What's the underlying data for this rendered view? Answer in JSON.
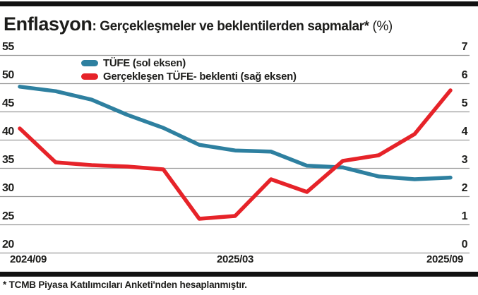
{
  "title": {
    "main": "Enflasyon",
    "separator": ": ",
    "subtitle": "Gerçekleşmeler ve beklentilerden sapmalar*",
    "unit": " (%)"
  },
  "legend": [
    {
      "label": "TÜFE (sol eksen)",
      "color": "#2e80a0"
    },
    {
      "label": "Gerçekleşen TÜFE- beklenti (sağ eksen)",
      "color": "#e62329"
    }
  ],
  "axes": {
    "left": {
      "ticks": [
        55,
        50,
        45,
        40,
        35,
        30,
        25,
        20
      ],
      "range": [
        20,
        55
      ]
    },
    "right": {
      "ticks": [
        7,
        6,
        5,
        4,
        3,
        2,
        1,
        0
      ],
      "range": [
        0,
        7
      ]
    },
    "x": {
      "labels": [
        "2024/09",
        "2025/03",
        "2025/09"
      ]
    }
  },
  "footnote": "* TCMB Piyasa Katılımcıları Anketi'nden hesaplanmıştır.",
  "colors": {
    "teal": "#2e80a0",
    "red": "#e62329",
    "grid": "#999999",
    "rule": "#111111",
    "text": "#1d1d1b"
  },
  "chart_data": {
    "type": "line",
    "title": "Enflasyon: Gerçekleşmeler ve beklentilerden sapmalar* (%)",
    "x": [
      "2024/09",
      "2024/10",
      "2024/11",
      "2024/12",
      "2025/01",
      "2025/02",
      "2025/03",
      "2025/04",
      "2025/05",
      "2025/06",
      "2025/07",
      "2025/08",
      "2025/09"
    ],
    "series": [
      {
        "name": "TÜFE (sol eksen)",
        "axis": "left",
        "color": "#2e80a0",
        "values": [
          49.4,
          48.6,
          47.1,
          44.4,
          42.1,
          39.1,
          38.1,
          37.9,
          35.4,
          35.1,
          33.5,
          33.0,
          33.3
        ]
      },
      {
        "name": "Gerçekleşen TÜFE- beklenti (sağ eksen)",
        "axis": "right",
        "color": "#e62329",
        "values": [
          4.4,
          3.2,
          3.1,
          3.05,
          2.95,
          1.2,
          1.3,
          2.6,
          2.15,
          3.25,
          3.45,
          4.2,
          5.75
        ]
      }
    ],
    "left_axis_range": [
      20,
      55
    ],
    "right_axis_range": [
      0,
      7
    ],
    "x_tick_labels": [
      "2024/09",
      "2025/03",
      "2025/09"
    ],
    "x_tick_month_indices": [
      0,
      6,
      12
    ],
    "grid": true,
    "legend_position": "top-left-inside"
  }
}
